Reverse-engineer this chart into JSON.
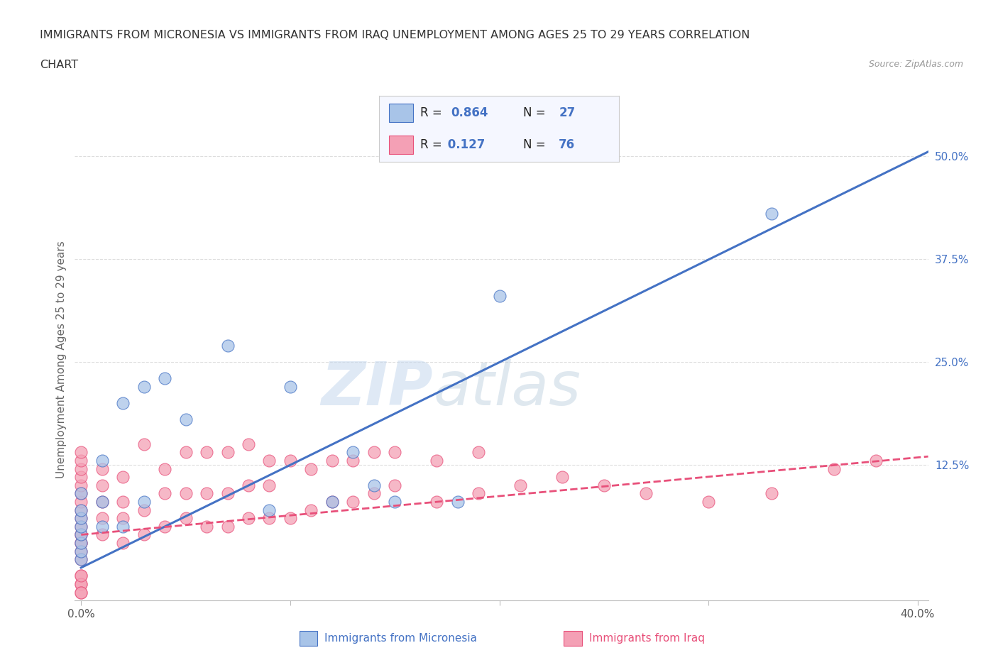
{
  "title_line1": "IMMIGRANTS FROM MICRONESIA VS IMMIGRANTS FROM IRAQ UNEMPLOYMENT AMONG AGES 25 TO 29 YEARS CORRELATION",
  "title_line2": "CHART",
  "source_text": "Source: ZipAtlas.com",
  "ylabel": "Unemployment Among Ages 25 to 29 years",
  "xlabel": "",
  "xlim": [
    -0.003,
    0.405
  ],
  "ylim": [
    -0.04,
    0.545
  ],
  "xticks": [
    0.0,
    0.1,
    0.2,
    0.3,
    0.4
  ],
  "xticklabels": [
    "0.0%",
    "",
    "",
    "",
    "40.0%"
  ],
  "yticks_right": [
    0.0,
    0.125,
    0.25,
    0.375,
    0.5
  ],
  "ytick_labels_right": [
    "",
    "12.5%",
    "25.0%",
    "37.5%",
    "50.0%"
  ],
  "micronesia_color": "#A8C4E8",
  "iraq_color": "#F4A0B5",
  "micronesia_line_color": "#4472C4",
  "iraq_line_color": "#E8507A",
  "watermark_zip": "ZIP",
  "watermark_atlas": "atlas",
  "bg_color": "#FFFFFF",
  "plot_bg_color": "#FFFFFF",
  "grid_color": "#DDDDDD",
  "title_color": "#333333",
  "axis_label_color": "#666666",
  "tick_color_blue": "#4472C4",
  "micronesia_x": [
    0.0,
    0.0,
    0.0,
    0.0,
    0.0,
    0.0,
    0.0,
    0.0,
    0.01,
    0.01,
    0.01,
    0.02,
    0.02,
    0.03,
    0.03,
    0.04,
    0.05,
    0.07,
    0.09,
    0.1,
    0.12,
    0.13,
    0.14,
    0.15,
    0.18,
    0.2,
    0.33
  ],
  "micronesia_y": [
    0.01,
    0.02,
    0.03,
    0.04,
    0.05,
    0.06,
    0.07,
    0.09,
    0.05,
    0.08,
    0.13,
    0.05,
    0.2,
    0.08,
    0.22,
    0.23,
    0.18,
    0.27,
    0.07,
    0.22,
    0.08,
    0.14,
    0.1,
    0.08,
    0.08,
    0.33,
    0.43
  ],
  "iraq_x": [
    0.0,
    0.0,
    0.0,
    0.0,
    0.0,
    0.0,
    0.0,
    0.0,
    0.0,
    0.0,
    0.0,
    0.0,
    0.0,
    0.0,
    0.0,
    0.0,
    0.0,
    0.0,
    0.0,
    0.0,
    0.0,
    0.0,
    0.01,
    0.01,
    0.01,
    0.01,
    0.01,
    0.02,
    0.02,
    0.02,
    0.02,
    0.03,
    0.03,
    0.03,
    0.04,
    0.04,
    0.04,
    0.05,
    0.05,
    0.05,
    0.06,
    0.06,
    0.06,
    0.07,
    0.07,
    0.07,
    0.08,
    0.08,
    0.08,
    0.09,
    0.09,
    0.09,
    0.1,
    0.1,
    0.11,
    0.11,
    0.12,
    0.12,
    0.13,
    0.13,
    0.14,
    0.14,
    0.15,
    0.15,
    0.17,
    0.17,
    0.19,
    0.19,
    0.21,
    0.23,
    0.25,
    0.27,
    0.3,
    0.33,
    0.36,
    0.38
  ],
  "iraq_y": [
    0.01,
    0.02,
    0.03,
    0.03,
    0.04,
    0.04,
    0.05,
    0.06,
    0.07,
    0.08,
    0.09,
    0.1,
    0.11,
    0.12,
    -0.01,
    -0.02,
    -0.02,
    -0.01,
    -0.03,
    -0.03,
    0.13,
    0.14,
    0.04,
    0.06,
    0.08,
    0.1,
    0.12,
    0.03,
    0.06,
    0.08,
    0.11,
    0.04,
    0.07,
    0.15,
    0.05,
    0.09,
    0.12,
    0.06,
    0.09,
    0.14,
    0.05,
    0.09,
    0.14,
    0.05,
    0.09,
    0.14,
    0.06,
    0.1,
    0.15,
    0.06,
    0.1,
    0.13,
    0.06,
    0.13,
    0.07,
    0.12,
    0.08,
    0.13,
    0.08,
    0.13,
    0.09,
    0.14,
    0.1,
    0.14,
    0.08,
    0.13,
    0.09,
    0.14,
    0.1,
    0.11,
    0.1,
    0.09,
    0.08,
    0.09,
    0.12,
    0.13
  ],
  "mic_line_x0": 0.0,
  "mic_line_y0": 0.0,
  "mic_line_x1": 0.405,
  "mic_line_y1": 0.505,
  "iraq_line_x0": 0.0,
  "iraq_line_y0": 0.04,
  "iraq_line_x1": 0.405,
  "iraq_line_y1": 0.135
}
